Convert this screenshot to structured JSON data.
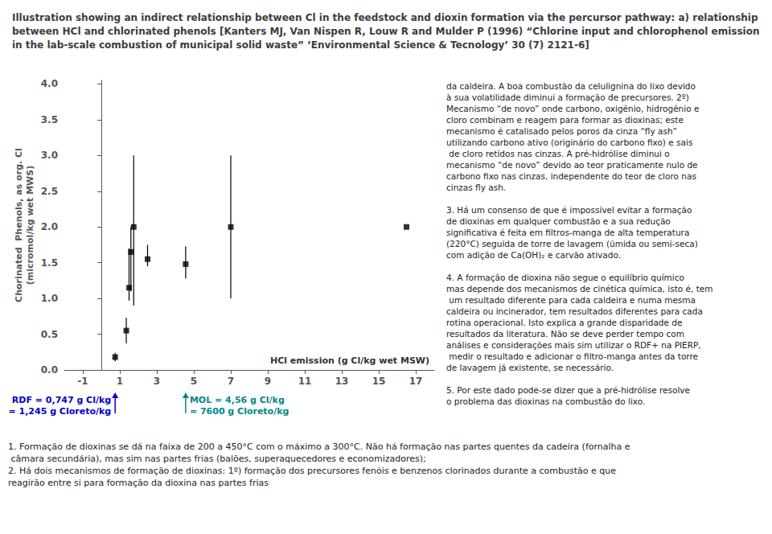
{
  "chart_data": {
    "type": "scatter",
    "title": "Illustration showing an indirect relationship between Cl in the feedstock and dioxin formation via the percursor pathway: a) relationship between HCl and chlorinated phenols [Kanters MJ, Van Nispen R, Louw R and Mulder P (1996) “Chlorine input and chlorophenol emission in the lab-scale combustion of municipal solid waste” ’Environmental Science & Tecnology’ 30 (7) 2121-6]",
    "xlabel": "HCl emission (g Cl/kg wet MSW)",
    "ylabel": [
      "Chorinated  Phenols, as org. Cl",
      "(micromol/kg wet MWS)"
    ],
    "xlim": [
      -2,
      18
    ],
    "ylim": [
      0.0,
      4.05
    ],
    "xticks": [
      -1,
      1,
      3,
      5,
      7,
      9,
      11,
      13,
      15,
      17
    ],
    "yticks": [
      {
        "value": 0.0,
        "label": "0.0"
      },
      0.5,
      {
        "value": 1.0,
        "label": "1.0"
      },
      1.5,
      {
        "value": 2.0,
        "label": "2.0"
      },
      2.5,
      {
        "value": 3.0,
        "label": "3.0"
      },
      3.5,
      {
        "value": 4.0,
        "label": "4.0"
      }
    ],
    "grid": false,
    "series": [
      {
        "color": "#000000",
        "marker": "square",
        "x": [
          0.747,
          1.35,
          1.5,
          1.6,
          1.75,
          2.5,
          4.56,
          7.0,
          16.5
        ],
        "values": [
          0.18,
          0.55,
          1.15,
          1.65,
          2.0,
          1.55,
          1.48,
          2.0,
          2.0
        ],
        "yerr_low": [
          0.06,
          0.18,
          0.18,
          0.55,
          1.1,
          0.1,
          0.2,
          1.0,
          0.0
        ],
        "yerr_high": [
          0.06,
          0.18,
          0.55,
          0.35,
          1.0,
          0.2,
          0.25,
          1.0,
          0.0
        ]
      }
    ],
    "annotations": [
      {
        "text": [
          "RDF = 0,747 g Cl/kg",
          "= 1,245 g Cloreto/kg"
        ],
        "x": 0.747,
        "color": "#0000cc"
      },
      {
        "text": [
          "MOL = 4,56 g Cl/kg",
          "= 7600 g Cloreto/kg"
        ],
        "x": 4.56,
        "color": "#008888"
      }
    ],
    "right_text": "da caldeira. A boa combustão da celulignina do lixo devido à sua volatilidade diminui a formação de precursores. 2º) Mecanismo “de novo” onde carbono, oxigênio, hidrogênio e cloro combinam e reagem para formar as dioxinas; este mecanismo é catalisado pelos poros da cinza “fly ash” utilizando carbono ativo (originário do carbono fixo) e sais de cloro retidos nas cinzas. A pré-hidrólise diminui o mecanismo “de novo” devido ao teor praticamente nulo de carbono fixo nas cinzas, independente do teor de cloro nas cinzas fly ash.\n\n3. Há um consenso de que é impossível evitar a formação de dioxinas em qualquer combustão e a sua redução significativa é feita em filtros-manga de alta temperatura (220°C) seguida de torre de lavagem (úmida ou semi-seca) com adição de Ca(OH)₂ e carvão ativado.\n\n4. A formação de dioxina não segue o equilíbrio químico mas depende dos mecanismos de cinética química, isto é, tem um resultado diferente para cada caldeira e numa mesma caldeira ou incinerador, tem resultados diferentes para cada rotina operacional. Isto explica a grande disparidade de resultados da literatura. Não se deve perder tempo com análises e considerações mais sim utilizar o RDF+ na PIERP, medir o resultado e adicionar o filtro-manga antes da torre de lavagem já existente, se necessário.\n\n5. Por este dado pode-se dizer que a pré-hidrólise resolve o problema das dioxinas na combustão do lixo.",
    "bottom_text": "1. Formação de dioxinas se dá na faixa de 200 a 450°C com o máximo a 300°C. Não há formação nas partes quentes da cadeira (fornalha e câmara secundária), mas sim nas partes frias (balões, superaquecedores e economizadores);\n2. Há dois mecanismos de formação de dioxinas: 1º) formação dos precursores fenóis e benzenos clorinados durante a combustão e que reagirão entre si para formação da dioxina nas partes frias"
  }
}
